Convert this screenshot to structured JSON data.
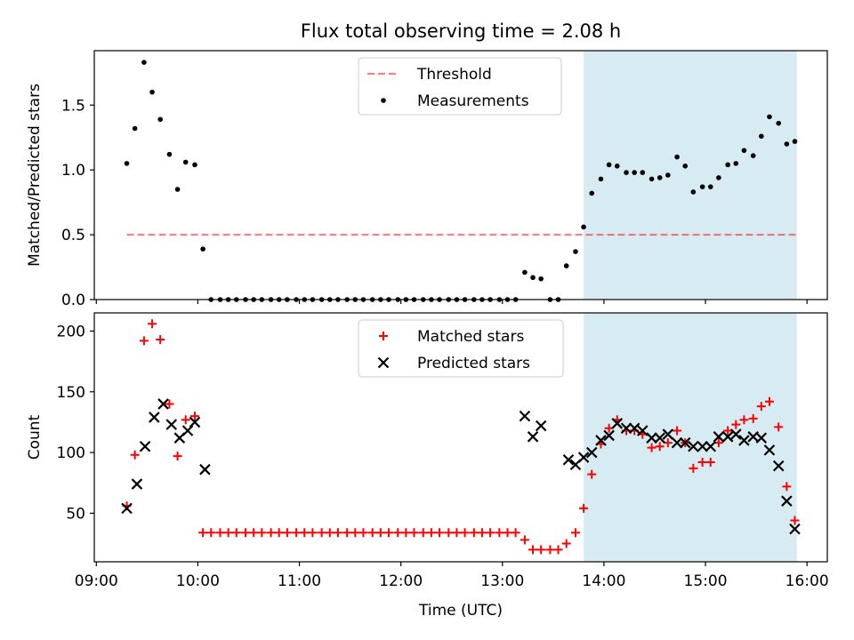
{
  "title": "Flux total observing time = 2.08 h",
  "chart_data": [
    {
      "type": "scatter",
      "panel": "top",
      "title": "Flux total observing time = 2.08 h",
      "ylabel": "Matched/Predicted stars",
      "xlabel": "",
      "x_axis": {
        "unit": "hours UTC",
        "range": [
          8.98,
          16.2
        ]
      },
      "ylim": [
        0,
        1.92
      ],
      "yticks": [
        0.0,
        0.5,
        1.0,
        1.5
      ],
      "ytick_labels": [
        "0.0",
        "0.5",
        "1.0",
        "1.5"
      ],
      "legend": {
        "placement": "top-center",
        "entries": [
          "Threshold",
          "Measurements"
        ]
      },
      "shaded_span": {
        "x": [
          13.8,
          15.9
        ],
        "color": "#add8e6"
      },
      "threshold": {
        "name": "Threshold",
        "y": 0.5,
        "x": [
          9.3,
          15.9
        ],
        "color": "#ff0000"
      },
      "series": [
        {
          "name": "Measurements",
          "marker": "dot",
          "color": "#000000",
          "x": [
            9.3,
            9.38,
            9.47,
            9.55,
            9.63,
            9.72,
            9.8,
            9.88,
            9.97,
            10.05,
            10.13,
            10.22,
            10.3,
            10.38,
            10.47,
            10.55,
            10.63,
            10.72,
            10.8,
            10.88,
            10.97,
            11.05,
            11.13,
            11.22,
            11.3,
            11.38,
            11.47,
            11.55,
            11.63,
            11.72,
            11.8,
            11.88,
            11.97,
            12.05,
            12.13,
            12.22,
            12.3,
            12.38,
            12.47,
            12.55,
            12.63,
            12.72,
            12.8,
            12.88,
            12.97,
            13.05,
            13.13,
            13.22,
            13.3,
            13.38,
            13.47,
            13.55,
            13.63,
            13.72,
            13.8,
            13.88,
            13.97,
            14.05,
            14.13,
            14.22,
            14.3,
            14.38,
            14.47,
            14.55,
            14.63,
            14.72,
            14.8,
            14.88,
            14.97,
            15.05,
            15.13,
            15.22,
            15.3,
            15.38,
            15.47,
            15.55,
            15.63,
            15.72,
            15.8,
            15.88
          ],
          "y": [
            1.05,
            1.32,
            1.83,
            1.6,
            1.39,
            1.12,
            0.85,
            1.06,
            1.04,
            0.39,
            0,
            0,
            0,
            0,
            0,
            0,
            0,
            0,
            0,
            0,
            0,
            0,
            0,
            0,
            0,
            0,
            0,
            0,
            0,
            0,
            0,
            0,
            0,
            0,
            0,
            0,
            0,
            0,
            0,
            0,
            0,
            0,
            0,
            0,
            0,
            0,
            0,
            0.21,
            0.17,
            0.16,
            0,
            0,
            0.26,
            0.37,
            0.56,
            0.82,
            0.93,
            1.04,
            1.03,
            0.98,
            0.98,
            0.98,
            0.93,
            0.94,
            0.96,
            1.1,
            1.03,
            0.83,
            0.87,
            0.87,
            0.94,
            1.04,
            1.05,
            1.15,
            1.11,
            1.26,
            1.41,
            1.36,
            1.2,
            1.22
          ]
        }
      ]
    },
    {
      "type": "scatter",
      "panel": "bottom",
      "title": "",
      "ylabel": "Count",
      "xlabel": "Time (UTC)",
      "x_axis": {
        "unit": "hours UTC",
        "range": [
          8.98,
          16.2
        ]
      },
      "xticks": [
        9,
        10,
        11,
        12,
        13,
        14,
        15,
        16
      ],
      "xtick_labels": [
        "09:00",
        "10:00",
        "11:00",
        "12:00",
        "13:00",
        "14:00",
        "15:00",
        "16:00"
      ],
      "ylim": [
        10,
        215
      ],
      "yticks": [
        50,
        100,
        150,
        200
      ],
      "ytick_labels": [
        "50",
        "100",
        "150",
        "200"
      ],
      "legend": {
        "placement": "top-center",
        "entries": [
          "Matched stars",
          "Predicted stars"
        ]
      },
      "shaded_span": {
        "x": [
          13.8,
          15.9
        ],
        "color": "#add8e6"
      },
      "series": [
        {
          "name": "Matched stars",
          "marker": "plus",
          "color": "#ff0000",
          "x": [
            9.3,
            9.38,
            9.47,
            9.55,
            9.63,
            9.72,
            9.8,
            9.88,
            9.97,
            10.05,
            10.13,
            10.22,
            10.3,
            10.38,
            10.47,
            10.55,
            10.63,
            10.72,
            10.8,
            10.88,
            10.97,
            11.05,
            11.13,
            11.22,
            11.3,
            11.38,
            11.47,
            11.55,
            11.63,
            11.72,
            11.8,
            11.88,
            11.97,
            12.05,
            12.13,
            12.22,
            12.3,
            12.38,
            12.47,
            12.55,
            12.63,
            12.72,
            12.8,
            12.88,
            12.97,
            13.05,
            13.13,
            13.22,
            13.3,
            13.38,
            13.47,
            13.55,
            13.63,
            13.72,
            13.8,
            13.88,
            13.97,
            14.05,
            14.13,
            14.22,
            14.3,
            14.38,
            14.47,
            14.55,
            14.63,
            14.72,
            14.8,
            14.88,
            14.97,
            15.05,
            15.13,
            15.22,
            15.3,
            15.38,
            15.47,
            15.55,
            15.63,
            15.72,
            15.8,
            15.88
          ],
          "y": [
            56,
            98,
            192,
            206,
            193,
            140,
            97,
            127,
            130,
            34,
            34,
            34,
            34,
            34,
            34,
            34,
            34,
            34,
            34,
            34,
            34,
            34,
            34,
            34,
            34,
            34,
            34,
            34,
            34,
            34,
            34,
            34,
            34,
            34,
            34,
            34,
            34,
            34,
            34,
            34,
            34,
            34,
            34,
            34,
            34,
            34,
            34,
            28,
            20,
            20,
            20,
            20,
            25,
            34,
            54,
            82,
            107,
            120,
            127,
            118,
            118,
            115,
            104,
            105,
            108,
            118,
            108,
            87,
            92,
            92,
            108,
            118,
            123,
            127,
            128,
            138,
            142,
            121,
            72,
            44
          ]
        },
        {
          "name": "Predicted stars",
          "marker": "x",
          "color": "#000000",
          "x": [
            9.3,
            9.4,
            9.48,
            9.57,
            9.66,
            9.74,
            9.82,
            9.9,
            9.97,
            10.07,
            13.22,
            13.3,
            13.38,
            13.65,
            13.72,
            13.8,
            13.88,
            13.97,
            14.05,
            14.13,
            14.22,
            14.3,
            14.38,
            14.47,
            14.55,
            14.63,
            14.72,
            14.8,
            14.88,
            14.97,
            15.05,
            15.13,
            15.22,
            15.3,
            15.38,
            15.47,
            15.55,
            15.63,
            15.72,
            15.8,
            15.88
          ],
          "y": [
            54,
            74,
            105,
            129,
            140,
            123,
            112,
            118,
            125,
            86,
            130,
            113,
            122,
            94,
            90,
            96,
            100,
            110,
            114,
            124,
            120,
            120,
            118,
            112,
            112,
            115,
            108,
            108,
            105,
            105,
            105,
            113,
            113,
            115,
            110,
            113,
            112,
            102,
            89,
            60,
            37
          ]
        }
      ]
    }
  ]
}
